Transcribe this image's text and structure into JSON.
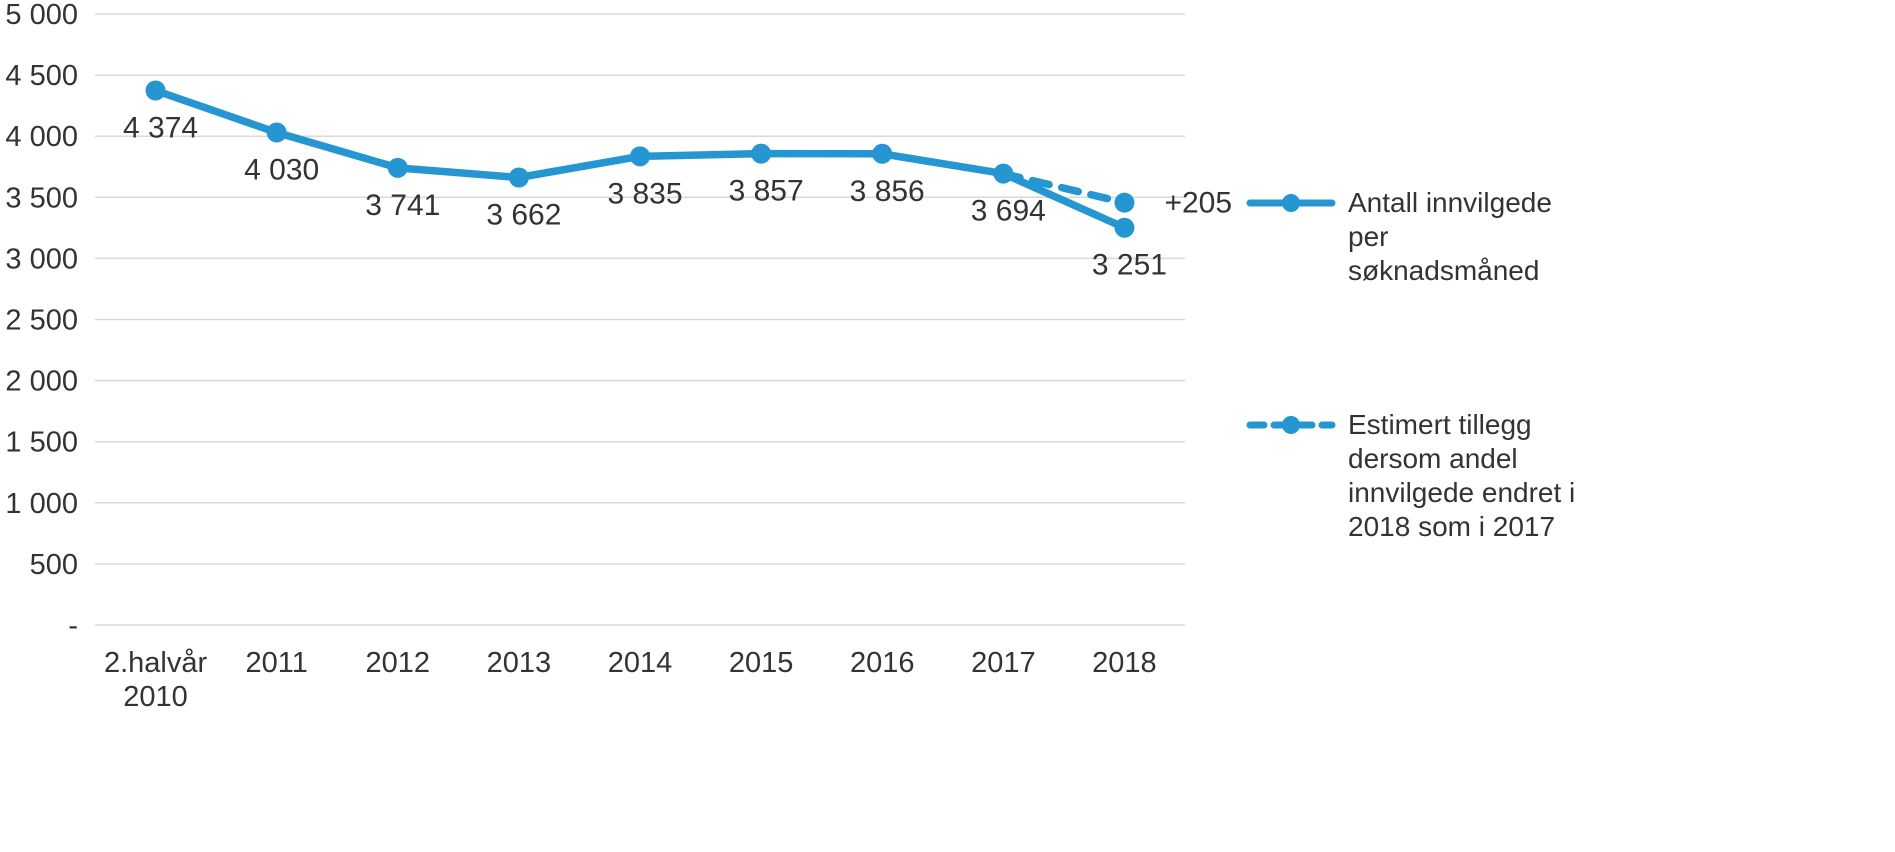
{
  "chart_data": {
    "type": "line",
    "title": "",
    "categories": [
      "2.halvår\n2010",
      "2011",
      "2012",
      "2013",
      "2014",
      "2015",
      "2016",
      "2017",
      "2018"
    ],
    "series": [
      {
        "name": "Antall innvilgede per søknadsmåned",
        "values": [
          4374,
          4030,
          3741,
          3662,
          3835,
          3857,
          3856,
          3694,
          3251
        ],
        "labels": [
          "4 374",
          "4 030",
          "3 741",
          "3 662",
          "3 835",
          "3 857",
          "3 856",
          "3 694",
          "3 251"
        ],
        "line_style": "solid"
      },
      {
        "name": "Estimert tillegg dersom andel innvilgede endret i 2018 som i 2017",
        "x_indices": [
          7,
          8
        ],
        "values": [
          3694,
          3456
        ],
        "labels": [
          "",
          "+205"
        ],
        "line_style": "dashed"
      }
    ],
    "ylim": [
      0,
      5000
    ],
    "ytick_step": 500,
    "ytick_labels": [
      "-",
      "500",
      "1 000",
      "1 500",
      "2 000",
      "2 500",
      "3 000",
      "3 500",
      "4 000",
      "4 500",
      "5 000"
    ],
    "grid": true,
    "legend_position": "right",
    "accent_color": "#2696d2",
    "grid_color": "#d9d9d9",
    "text_color": "#333333"
  }
}
